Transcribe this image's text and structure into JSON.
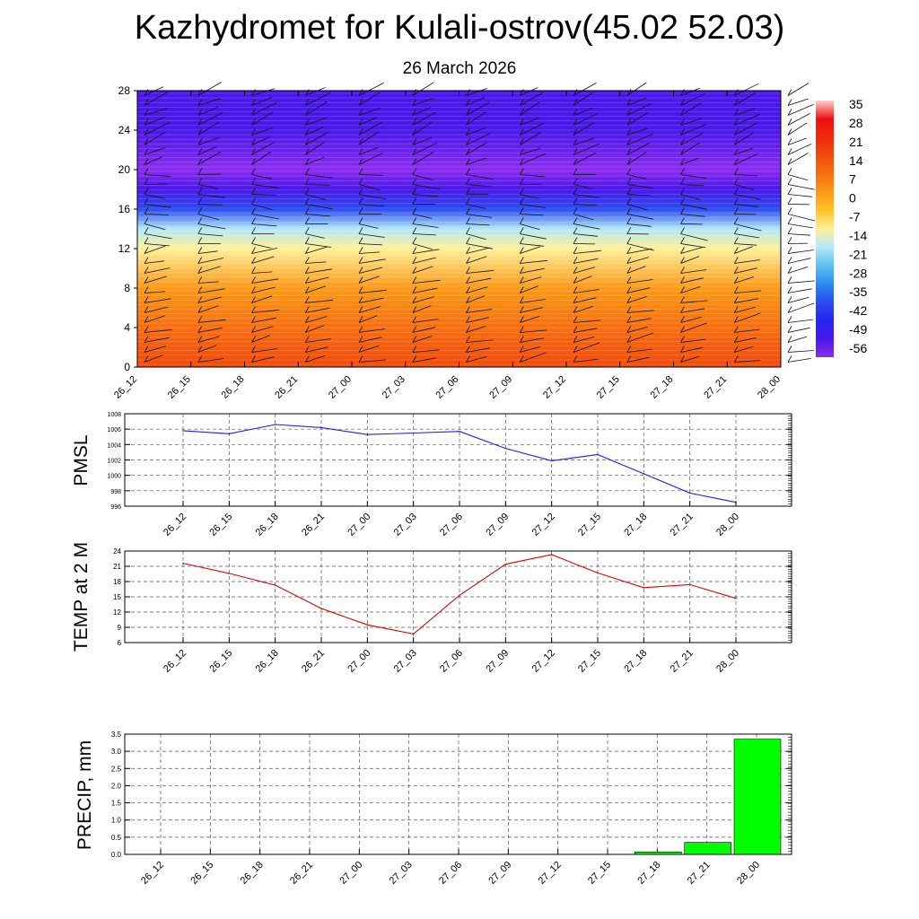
{
  "title": "Kazhydromet for Kulali-ostrov(45.02 52.03)",
  "date": "26 March 2026",
  "time_labels": [
    "26_12",
    "26_15",
    "26_18",
    "26_21",
    "27_00",
    "27_03",
    "27_06",
    "27_09",
    "27_12",
    "27_15",
    "27_18",
    "27_21",
    "28_00"
  ],
  "chart_data": [
    {
      "type": "heatmap",
      "name": "temperature-wind-profile",
      "x": [
        "26_12",
        "26_15",
        "26_18",
        "26_21",
        "27_00",
        "27_03",
        "27_06",
        "27_09",
        "27_12",
        "27_15",
        "27_18",
        "27_21",
        "28_00"
      ],
      "y_ticks": [
        0,
        4,
        8,
        12,
        16,
        20,
        24,
        28
      ],
      "ylim": [
        0,
        28
      ],
      "colorbar": {
        "labels": [
          "35",
          "28",
          "21",
          "14",
          "7",
          "0",
          "-7",
          "-14",
          "-21",
          "-28",
          "-35",
          "-42",
          "-49",
          "-56"
        ],
        "colors": [
          "#ffd0d0",
          "#f01010",
          "#f02a0a",
          "#f24a0c",
          "#f76f10",
          "#fb9a18",
          "#fdc22a",
          "#fff09a",
          "#b4e8f8",
          "#5fc0f0",
          "#2a8cf0",
          "#2c4cf2",
          "#2626f0",
          "#4a18ea",
          "#8b2cf0"
        ]
      },
      "profile_temperature_c": [
        {
          "height": 0,
          "t": 14
        },
        {
          "height": 4,
          "t": 10
        },
        {
          "height": 8,
          "t": 2
        },
        {
          "height": 12,
          "t": -8
        },
        {
          "height": 14,
          "t": -20
        },
        {
          "height": 16,
          "t": -34
        },
        {
          "height": 18,
          "t": -48
        },
        {
          "height": 20,
          "t": -58
        },
        {
          "height": 24,
          "t": -52
        },
        {
          "height": 28,
          "t": -50
        }
      ],
      "wind_barbs": "present",
      "grid": false
    },
    {
      "type": "line",
      "ylabel": "PMSL",
      "x": [
        "26_12",
        "26_15",
        "26_18",
        "26_21",
        "27_00",
        "27_03",
        "27_06",
        "27_09",
        "27_12",
        "27_15",
        "27_18",
        "27_21",
        "28_00"
      ],
      "series": [
        {
          "values": [
            1005.8,
            1005.4,
            1006.6,
            1006.2,
            1005.3,
            1005.5,
            1005.7,
            1003.5,
            1001.9,
            1002.7,
            1000.2,
            997.7,
            996.5
          ],
          "color": "#1a1aff"
        }
      ],
      "ylim": [
        996,
        1008
      ],
      "y_ticks": [
        996,
        998,
        1000,
        1002,
        1004,
        1006,
        1008
      ],
      "grid": true
    },
    {
      "type": "line",
      "ylabel": "TEMP at 2 M",
      "x": [
        "26_12",
        "26_15",
        "26_18",
        "26_21",
        "27_00",
        "27_03",
        "27_06",
        "27_09",
        "27_12",
        "27_15",
        "27_18",
        "27_21",
        "28_00"
      ],
      "series": [
        {
          "values": [
            21.6,
            19.6,
            17.3,
            12.7,
            9.5,
            7.7,
            15.3,
            21.4,
            23.3,
            19.7,
            16.8,
            17.4,
            14.7
          ],
          "color": "#e00000"
        }
      ],
      "ylim": [
        6,
        24
      ],
      "y_ticks": [
        6,
        9,
        12,
        15,
        18,
        21,
        24
      ],
      "grid": true
    },
    {
      "type": "bar",
      "ylabel": "PRECIP, mm",
      "categories": [
        "26_12",
        "26_15",
        "26_18",
        "26_21",
        "27_00",
        "27_03",
        "27_06",
        "27_09",
        "27_12",
        "27_15",
        "27_18",
        "27_21",
        "28_00"
      ],
      "values": [
        0,
        0,
        0,
        0,
        0,
        0,
        0,
        0,
        0,
        0,
        0.07,
        0.35,
        3.35
      ],
      "color": "#00ff00",
      "ylim": [
        0,
        3.5
      ],
      "y_ticks": [
        "0.0",
        "0.5",
        "1.0",
        "1.5",
        "2.0",
        "2.5",
        "3.0",
        "3.5"
      ],
      "grid": true
    }
  ]
}
